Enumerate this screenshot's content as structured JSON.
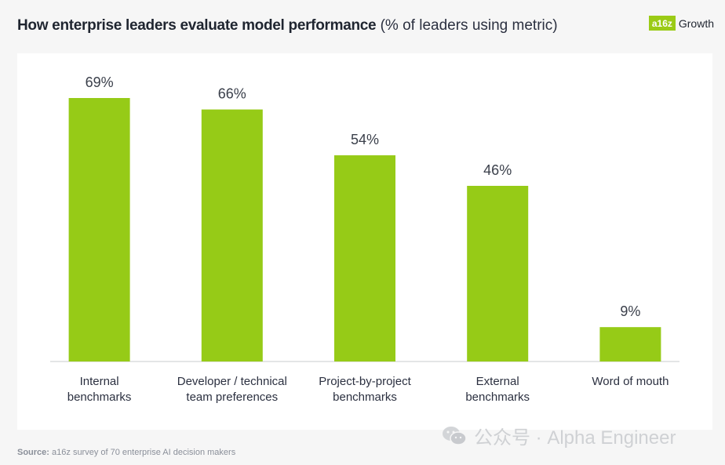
{
  "title": {
    "bold": "How enterprise leaders evaluate model performance",
    "subtitle": "(% of leaders using metric)"
  },
  "logo": {
    "badge": "a16z",
    "text": "Growth"
  },
  "chart_data": {
    "type": "bar",
    "title": "How enterprise leaders evaluate model performance",
    "subtitle": "(% of leaders using metric)",
    "categories": [
      [
        "Internal",
        "benchmarks"
      ],
      [
        "Developer / technical",
        "team preferences"
      ],
      [
        "Project-by-project",
        "benchmarks"
      ],
      [
        "External",
        "benchmarks"
      ],
      [
        "Word of mouth"
      ]
    ],
    "values": [
      69,
      66,
      54,
      46,
      9
    ],
    "value_labels": [
      "69%",
      "66%",
      "54%",
      "46%",
      "9%"
    ],
    "unit": "%",
    "ylim": [
      0,
      100
    ],
    "bar_color": "#96cb17",
    "xlabel": "",
    "ylabel": "",
    "grid": false
  },
  "source": {
    "label": "Source:",
    "text": "a16z survey of 70 enterprise AI decision makers"
  },
  "watermark": {
    "text": "公众号 · Alpha Engineer",
    "icon": "wechat-icon"
  }
}
